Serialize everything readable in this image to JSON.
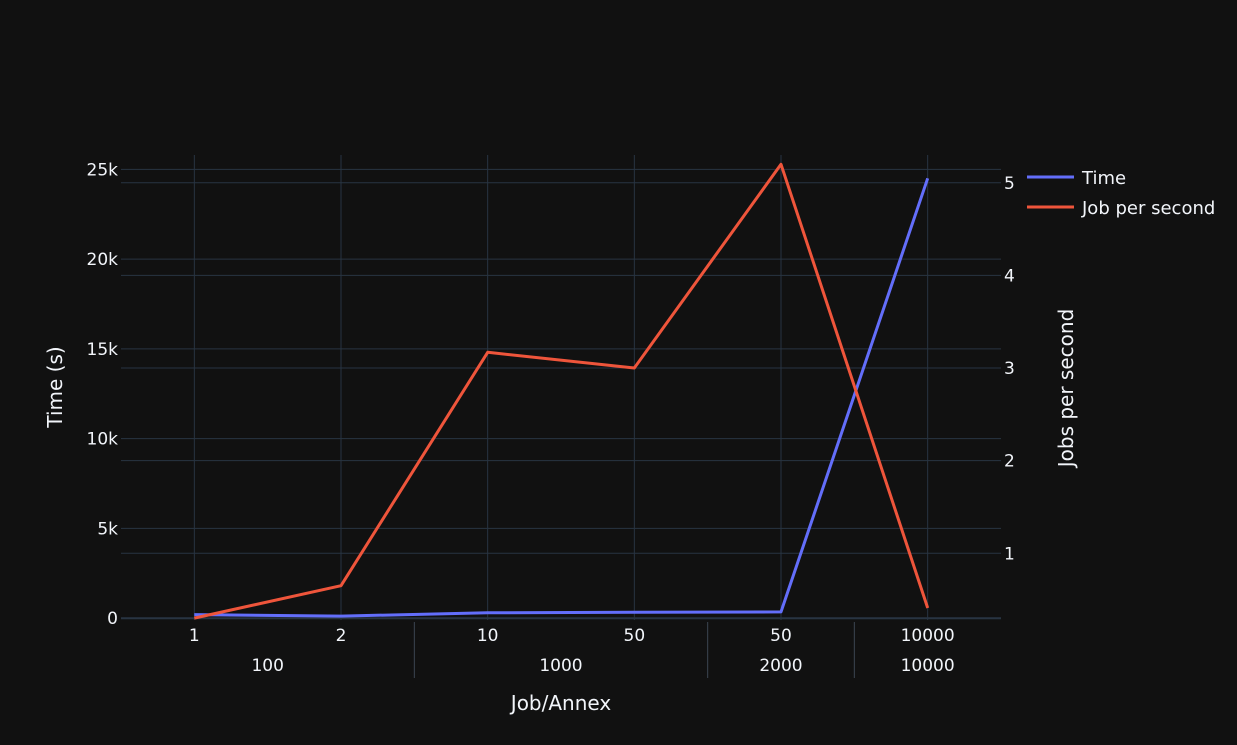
{
  "chart_data": {
    "type": "line",
    "x_levels": {
      "inner": [
        "1",
        "2",
        "10",
        "50",
        "50",
        "10000"
      ],
      "outer": [
        {
          "label": "100",
          "span": [
            0,
            1
          ]
        },
        {
          "label": "1000",
          "span": [
            2,
            3
          ]
        },
        {
          "label": "2000",
          "span": [
            4,
            4
          ]
        },
        {
          "label": "10000",
          "span": [
            5,
            5
          ]
        }
      ]
    },
    "xlabel": "Job/Annex",
    "ylabel": "Time (s)",
    "y2label": "Jobs per second",
    "ylim": [
      -100,
      25800
    ],
    "y2lim": [
      0.28,
      5.3
    ],
    "y_ticks": [
      0,
      5000,
      10000,
      15000,
      20000,
      25000
    ],
    "y_tick_labels": [
      "0",
      "5k",
      "10k",
      "15k",
      "20k",
      "25k"
    ],
    "y2_ticks": [
      1,
      2,
      3,
      4,
      5
    ],
    "y2_tick_labels": [
      "1",
      "2",
      "3",
      "4",
      "5"
    ],
    "series": [
      {
        "name": "Time",
        "axis": "y",
        "color": "#636efa",
        "values": [
          200,
          120,
          300,
          330,
          350,
          24500
        ]
      },
      {
        "name": "Job per second",
        "axis": "y2",
        "color": "#ef553b",
        "values": [
          0.3,
          0.65,
          3.17,
          3.0,
          5.2,
          0.41
        ]
      }
    ],
    "grid": true,
    "legend_position": "top-right"
  }
}
